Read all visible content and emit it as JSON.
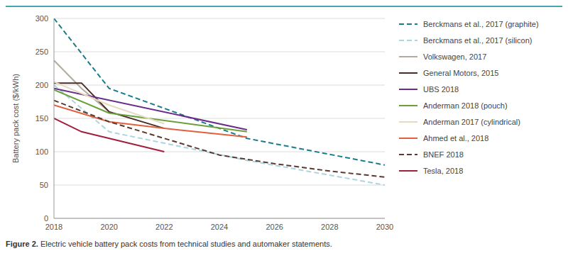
{
  "chart_data": {
    "type": "line",
    "caption": "Figure 2. Electric vehicle battery pack costs from technical studies and automaker statements.",
    "y_label": "Battery pack cost ($/kWh)",
    "xlim": [
      2018,
      2030
    ],
    "xticks": [
      2018,
      2020,
      2022,
      2024,
      2026,
      2028,
      2030
    ],
    "ylim": [
      0,
      300
    ],
    "yticks": [
      0,
      50,
      100,
      150,
      200,
      250,
      300
    ],
    "grid": true,
    "legend": "right",
    "series": [
      {
        "name": "Berckmans et al., 2017 (graphite)",
        "color": "#1b7c8c",
        "line_style": "dashed",
        "x": [
          2018,
          2020,
          2025,
          2030
        ],
        "values": [
          300,
          195,
          120,
          80
        ]
      },
      {
        "name": "Berckmans et al., 2017 (silicon)",
        "color": "#a9d6df",
        "line_style": "dashed",
        "x": [
          2018,
          2020,
          2025,
          2030
        ],
        "values": [
          200,
          130,
          87,
          50
        ]
      },
      {
        "name": "Volkswagen, 2017",
        "color": "#b3aa9f",
        "line_style": "solid",
        "x": [
          2018,
          2019,
          2020
        ],
        "values": [
          237,
          195,
          160
        ]
      },
      {
        "name": "General Motors, 2015",
        "color": "#4b2d26",
        "line_style": "solid",
        "x": [
          2018,
          2019,
          2020,
          2022
        ],
        "values": [
          203,
          203,
          160,
          135
        ]
      },
      {
        "name": "UBS 2018",
        "color": "#6a2c8c",
        "line_style": "solid",
        "x": [
          2018,
          2025
        ],
        "values": [
          195,
          133
        ]
      },
      {
        "name": "Anderman 2018 (pouch)",
        "color": "#6a9f3a",
        "line_style": "solid",
        "x": [
          2018,
          2020,
          2025
        ],
        "values": [
          193,
          158,
          130
        ]
      },
      {
        "name": "Anderman 2017 (cylindrical)",
        "color": "#e6dbc0",
        "line_style": "solid",
        "x": [
          2018,
          2020,
          2022
        ],
        "values": [
          205,
          170,
          142
        ]
      },
      {
        "name": "Ahmed et al., 2018",
        "color": "#e0603f",
        "line_style": "solid",
        "x": [
          2018,
          2020,
          2022,
          2025
        ],
        "values": [
          170,
          145,
          135,
          122
        ]
      },
      {
        "name": "BNEF 2018",
        "color": "#5a3a30",
        "line_style": "dashed",
        "x": [
          2018,
          2020,
          2024,
          2026,
          2028,
          2030
        ],
        "values": [
          177,
          145,
          95,
          82,
          71,
          62
        ]
      },
      {
        "name": "Tesla, 2018",
        "color": "#a1203c",
        "line_style": "solid",
        "x": [
          2018,
          2019,
          2022
        ],
        "values": [
          150,
          130,
          100
        ]
      }
    ]
  }
}
